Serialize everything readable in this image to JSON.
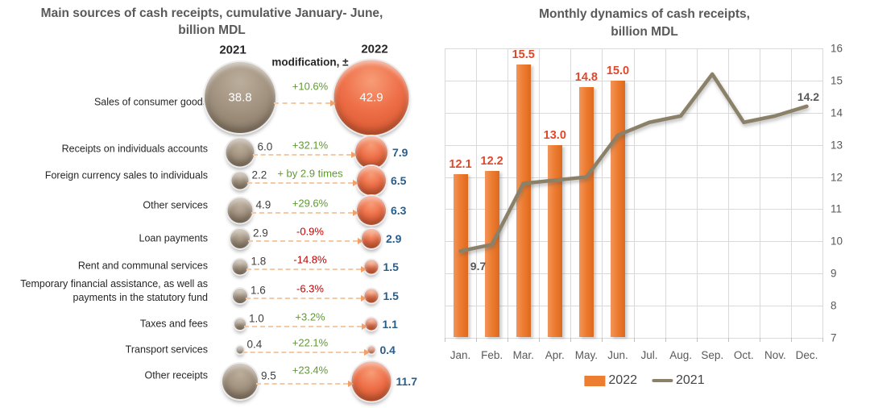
{
  "left_chart": {
    "title": [
      "Main sources of cash receipts, cumulative January- June,",
      "billion MDL"
    ],
    "headers": {
      "year_left": "2021",
      "modification": "modification, ±",
      "year_right": "2022"
    },
    "rows": [
      {
        "label": "Sales of consumer goods",
        "v2021": 38.8,
        "mod": "+10.6%",
        "v2022": 42.9
      },
      {
        "label": "Receipts on individuals accounts",
        "v2021": 6.0,
        "mod": "+32.1%",
        "v2022": 7.9
      },
      {
        "label": "Foreign currency sales to individuals",
        "v2021": 2.2,
        "mod": "+ by 2.9 times",
        "v2022": 6.5
      },
      {
        "label": "Other services",
        "v2021": 4.9,
        "mod": "+29.6%",
        "v2022": 6.3
      },
      {
        "label": "Loan payments",
        "v2021": 2.9,
        "mod": "-0.9%",
        "v2022": 2.9
      },
      {
        "label": "Rent and communal services",
        "v2021": 1.8,
        "mod": "-14.8%",
        "v2022": 1.5
      },
      {
        "label": "Temporary financial assistance, as well as payments in the statutory fund",
        "v2021": 1.6,
        "mod": "-6.3%",
        "v2022": 1.5
      },
      {
        "label": "Taxes and fees",
        "v2021": 1.0,
        "mod": "+3.2%",
        "v2022": 1.1
      },
      {
        "label": "Transport services",
        "v2021": 0.4,
        "mod": "+22.1%",
        "v2022": 0.4
      },
      {
        "label": "Other receipts",
        "v2021": 9.5,
        "mod": "+23.4%",
        "v2022": 11.7
      }
    ]
  },
  "right_chart": {
    "title": [
      "Monthly dynamics of cash receipts,",
      "billion MDL"
    ],
    "legend": [
      "2022",
      "2021"
    ]
  },
  "chart_data": [
    {
      "type": "table",
      "title": "Main sources of cash receipts, cumulative January- June, billion MDL",
      "columns": [
        "category",
        "2021",
        "modification, ±",
        "2022"
      ],
      "rows": [
        [
          "Sales of consumer goods",
          38.8,
          "+10.6%",
          42.9
        ],
        [
          "Receipts on individuals accounts",
          6.0,
          "+32.1%",
          7.9
        ],
        [
          "Foreign currency sales to individuals",
          2.2,
          "+ by 2.9 times",
          6.5
        ],
        [
          "Other services",
          4.9,
          "+29.6%",
          6.3
        ],
        [
          "Loan payments",
          2.9,
          "-0.9%",
          2.9
        ],
        [
          "Rent and communal services",
          1.8,
          "-14.8%",
          1.5
        ],
        [
          "Temporary financial assistance, as well as payments in the statutory fund",
          1.6,
          "-6.3%",
          1.5
        ],
        [
          "Taxes and fees",
          1.0,
          "+3.2%",
          1.1
        ],
        [
          "Transport services",
          0.4,
          "+22.1%",
          0.4
        ],
        [
          "Other receipts",
          9.5,
          "+23.4%",
          11.7
        ]
      ]
    },
    {
      "type": "bar+line",
      "title": "Monthly dynamics of cash receipts, billion MDL",
      "categories": [
        "Jan.",
        "Feb.",
        "Mar.",
        "Apr.",
        "May.",
        "Jun.",
        "Jul.",
        "Aug.",
        "Sep.",
        "Oct.",
        "Nov.",
        "Dec."
      ],
      "series": [
        {
          "name": "2022",
          "type": "bar",
          "color": "#ED7D31",
          "values": [
            12.1,
            12.2,
            15.5,
            13.0,
            14.8,
            15.0,
            null,
            null,
            null,
            null,
            null,
            null
          ],
          "labels": [
            "12.1",
            "12.2",
            "15.5",
            "13.0",
            "14.8",
            "15.0",
            null,
            null,
            null,
            null,
            null,
            null
          ]
        },
        {
          "name": "2021",
          "type": "line",
          "color": "#8B8169",
          "values": [
            9.7,
            9.9,
            11.8,
            11.9,
            12.0,
            13.3,
            13.7,
            13.9,
            15.2,
            13.7,
            13.9,
            14.2
          ],
          "point_labels": [
            {
              "index": 0,
              "text": "9.7"
            },
            {
              "index": 11,
              "text": "14.2"
            }
          ]
        }
      ],
      "ylim": [
        7,
        16
      ],
      "y_ticks": [
        7,
        8,
        9,
        10,
        11,
        12,
        13,
        14,
        15,
        16
      ],
      "y_axis_side": "right",
      "grid": true,
      "legend_position": "bottom"
    }
  ],
  "colors": {
    "bar": "#ED7D31",
    "line": "#8B8169",
    "bubble_2021": "#9A8C7B",
    "bubble_2022": "#EB6845",
    "positive": "#5E9B30",
    "negative": "#C00000",
    "value_2021_text": "#404040",
    "value_2022_text": "#2A5E8A",
    "bar_label": "#E0472B",
    "axis_text": "#595959",
    "title_text": "#595959",
    "gridline": "#D9D9D9",
    "arrow": "#F5C9A4"
  }
}
